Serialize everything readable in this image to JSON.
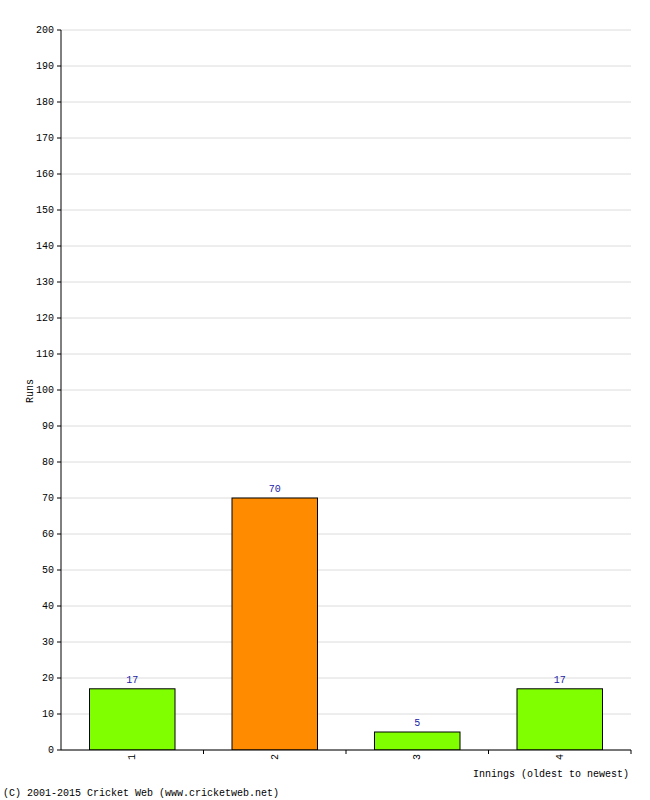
{
  "chart_data": {
    "type": "bar",
    "x_label": "Innings (oldest to newest)",
    "y_label": "Runs",
    "annotations": [
      "(C) 2001-2015 Cricket Web (www.cricketweb.net)"
    ],
    "categories": [
      "1",
      "2",
      "3",
      "4"
    ],
    "values": [
      17,
      70,
      5,
      17
    ],
    "colors": [
      "#7fff00",
      "#ff8c00",
      "#7fff00",
      "#7fff00"
    ],
    "ylim": [
      0,
      200
    ],
    "yticks": [
      0,
      10,
      20,
      30,
      40,
      50,
      60,
      70,
      80,
      90,
      100,
      110,
      120,
      130,
      140,
      150,
      160,
      170,
      180,
      190,
      200
    ],
    "grid": true,
    "data_labels": true
  }
}
